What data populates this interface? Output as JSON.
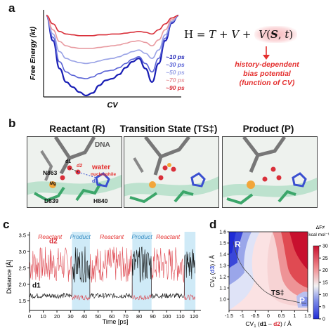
{
  "panels": {
    "a": {
      "letter": "a",
      "ylabel": "Free Energy (kt)",
      "xlabel": "CV",
      "legend": [
        "~10 ps",
        "~30 ps",
        "~50 ps",
        "~70 ps",
        "~90 ps"
      ],
      "legend_colors": [
        "#1a1fb5",
        "#5a63d6",
        "#9aa3e6",
        "#e89aa0",
        "#d9303a"
      ],
      "equation": "H = T + V + V(S, t)",
      "annotation": "history-dependent bias potential (function of CV)",
      "annotation_lines": [
        "history-dependent",
        "bias potential",
        "(function of CV)"
      ]
    },
    "b": {
      "letter": "b",
      "titles": [
        "Reactant (R)",
        "Transition State (TS‡)",
        "Product (P)"
      ],
      "labels": {
        "dna": "DNA",
        "water": "water",
        "nucleophile": "nucleophile",
        "d1": "d1",
        "d2": "d2",
        "d3": "d3",
        "n863": "N863",
        "mg": "Mg",
        "d839": "D839",
        "h840": "H840"
      }
    },
    "c": {
      "letter": "c",
      "ylabel": "Distance [Å]",
      "xlabel": "Time [ps]",
      "region_labels": [
        "Reactant",
        "Product",
        "Reactant",
        "Product",
        "Reactant"
      ],
      "series_labels": [
        "d2",
        "d1"
      ]
    },
    "d": {
      "letter": "d",
      "ylabel_parts": [
        "CV",
        "2",
        " (",
        "d3",
        ") / Å"
      ],
      "xlabel_parts": [
        "CV",
        "1",
        " (",
        "d1",
        " – ",
        "d2",
        ") / Å"
      ],
      "cbar_title": [
        "ΔF≠",
        "kcal mol⁻¹"
      ],
      "point_labels": [
        "R",
        "TS‡",
        "P"
      ]
    }
  },
  "chart_data": [
    {
      "type": "line",
      "panel": "a",
      "title": "",
      "xlabel": "CV",
      "ylabel": "Free Energy (kt)",
      "series": [
        {
          "name": "~10 ps",
          "color": "#1a1fb5",
          "x": [
            0,
            0.05,
            0.1,
            0.15,
            0.2,
            0.25,
            0.3,
            0.35,
            0.4,
            0.45,
            0.5,
            0.55,
            0.6,
            0.65,
            0.7,
            0.75,
            0.8,
            0.85,
            0.9,
            0.95,
            1
          ],
          "y": [
            9.5,
            6.5,
            3.2,
            1.6,
            1.0,
            0.4,
            0.0,
            0.3,
            1.2,
            1.8,
            2.0,
            2.5,
            3.3,
            4.0,
            4.4,
            3.2,
            1.6,
            3.8,
            6.5,
            8.6,
            9.5
          ]
        },
        {
          "name": "~30 ps",
          "color": "#5a63d6",
          "x": [
            0,
            0.05,
            0.1,
            0.15,
            0.2,
            0.25,
            0.3,
            0.35,
            0.4,
            0.45,
            0.5,
            0.55,
            0.6,
            0.65,
            0.7,
            0.75,
            0.8,
            0.85,
            0.9,
            0.95,
            1
          ],
          "y": [
            9.5,
            6.9,
            4.0,
            2.8,
            2.4,
            2.1,
            2.0,
            2.2,
            2.6,
            2.9,
            3.0,
            3.3,
            3.8,
            4.3,
            4.6,
            3.8,
            2.8,
            4.4,
            6.8,
            8.7,
            9.5
          ]
        },
        {
          "name": "~50 ps",
          "color": "#9aa3e6",
          "x": [
            0,
            0.05,
            0.1,
            0.15,
            0.2,
            0.25,
            0.3,
            0.35,
            0.4,
            0.45,
            0.5,
            0.55,
            0.6,
            0.65,
            0.7,
            0.75,
            0.8,
            0.85,
            0.9,
            0.95,
            1
          ],
          "y": [
            9.5,
            7.3,
            5.2,
            4.4,
            4.1,
            3.9,
            3.8,
            3.9,
            4.1,
            4.3,
            4.4,
            4.6,
            4.9,
            5.2,
            5.4,
            5.0,
            4.4,
            5.4,
            7.2,
            8.8,
            9.5
          ]
        },
        {
          "name": "~70 ps",
          "color": "#e89aa0",
          "x": [
            0,
            0.05,
            0.1,
            0.15,
            0.2,
            0.25,
            0.3,
            0.35,
            0.4,
            0.45,
            0.5,
            0.55,
            0.6,
            0.65,
            0.7,
            0.75,
            0.8,
            0.85,
            0.9,
            0.95,
            1
          ],
          "y": [
            9.5,
            7.8,
            6.4,
            5.9,
            5.7,
            5.6,
            5.6,
            5.6,
            5.7,
            5.8,
            5.9,
            6.0,
            6.2,
            6.4,
            6.5,
            6.3,
            5.9,
            6.6,
            7.8,
            9.0,
            9.5
          ]
        },
        {
          "name": "~90 ps",
          "color": "#d9303a",
          "x": [
            0,
            0.05,
            0.1,
            0.15,
            0.2,
            0.25,
            0.3,
            0.35,
            0.4,
            0.45,
            0.5,
            0.55,
            0.6,
            0.65,
            0.7,
            0.75,
            0.8,
            0.85,
            0.9,
            0.95,
            1
          ],
          "y": [
            9.5,
            8.5,
            7.6,
            7.3,
            7.2,
            7.1,
            7.1,
            7.1,
            7.2,
            7.2,
            7.3,
            7.3,
            7.4,
            7.5,
            7.6,
            7.5,
            7.3,
            7.8,
            8.5,
            9.2,
            9.5
          ]
        }
      ]
    },
    {
      "type": "line",
      "panel": "c",
      "title": "",
      "xlabel": "Time [ps]",
      "ylabel": "Distance [Å]",
      "xlim": [
        0,
        125
      ],
      "ylim": [
        1.2,
        3.6
      ],
      "xticks": [
        0,
        10,
        20,
        30,
        40,
        50,
        60,
        70,
        80,
        90,
        100,
        110,
        120
      ],
      "yticks": [
        1.5,
        2.0,
        2.5,
        3.0,
        3.5
      ],
      "shaded_regions": [
        [
          31,
          44
        ],
        [
          75,
          89
        ],
        [
          113,
          121
        ]
      ],
      "series": [
        {
          "name": "d2",
          "color": "#d9303a",
          "mean_by_region": [
            {
              "t": [
                0,
                31
              ],
              "mean": 2.6
            },
            {
              "t": [
                31,
                44
              ],
              "mean": 1.6
            },
            {
              "t": [
                44,
                75
              ],
              "mean": 2.6
            },
            {
              "t": [
                75,
                89
              ],
              "mean": 1.6
            },
            {
              "t": [
                89,
                113
              ],
              "mean": 2.6
            },
            {
              "t": [
                113,
                121
              ],
              "mean": 1.6
            }
          ]
        },
        {
          "name": "d1",
          "color": "#111111",
          "mean_by_region": [
            {
              "t": [
                0,
                31
              ],
              "mean": 1.65
            },
            {
              "t": [
                31,
                44
              ],
              "mean": 2.6
            },
            {
              "t": [
                44,
                75
              ],
              "mean": 1.65
            },
            {
              "t": [
                75,
                89
              ],
              "mean": 2.6
            },
            {
              "t": [
                89,
                113
              ],
              "mean": 1.65
            },
            {
              "t": [
                113,
                121
              ],
              "mean": 2.6
            }
          ]
        }
      ]
    },
    {
      "type": "heatmap",
      "panel": "d",
      "title": "",
      "xlabel": "CV1 (d1 – d2) / Å",
      "ylabel": "CV2 (d3) / Å",
      "xlim": [
        -1.5,
        1.5
      ],
      "ylim": [
        0.9,
        1.6
      ],
      "xticks": [
        -1.5,
        -1.0,
        -0.5,
        0,
        0.5,
        1.0,
        1.5
      ],
      "yticks": [
        1.0,
        1.1,
        1.2,
        1.3,
        1.4,
        1.5,
        1.6
      ],
      "colorbar": {
        "title": "ΔF≠ kcal mol⁻¹",
        "range": [
          0,
          30
        ],
        "ticks": [
          0,
          5,
          10,
          15,
          20,
          25,
          30
        ]
      },
      "minima": [
        {
          "label": "R",
          "x": -1.3,
          "y": 1.45
        },
        {
          "label": "TS‡",
          "x": 0.35,
          "y": 1.12
        },
        {
          "label": "P",
          "x": 1.3,
          "y": 1.0
        }
      ]
    }
  ]
}
